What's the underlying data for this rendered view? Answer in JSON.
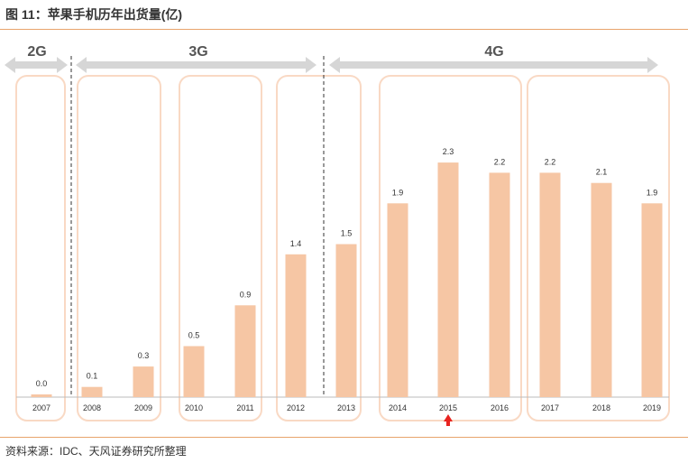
{
  "figure_title": "图 11：苹果手机历年出货量(亿)",
  "source": "资料来源：IDC、天风证券研究所整理",
  "generations": [
    {
      "label": "2G"
    },
    {
      "label": "3G"
    },
    {
      "label": "4G"
    }
  ],
  "colors": {
    "bar": "#f6c6a4",
    "frame": "#f9d9c4",
    "rule": "#e8a46c",
    "arrow": "#d6d6d6",
    "marker": "#e8231f",
    "text": "#333333",
    "axis": "#bbbbbb"
  },
  "chart_data": {
    "type": "bar",
    "title": "苹果手机历年出货量(亿)",
    "xlabel": "",
    "ylabel": "",
    "ylim": [
      0,
      2.5
    ],
    "grid": false,
    "legend": "none",
    "categories": [
      "2007",
      "2008",
      "2009",
      "2010",
      "2011",
      "2012",
      "2013",
      "2014",
      "2015",
      "2016",
      "2017",
      "2018",
      "2019"
    ],
    "values": [
      0.0,
      0.1,
      0.3,
      0.5,
      0.9,
      1.4,
      1.5,
      1.9,
      2.3,
      2.2,
      2.2,
      2.1,
      1.9
    ],
    "value_labels": [
      "0.0",
      "0.1",
      "0.3",
      "0.5",
      "0.9",
      "1.4",
      "1.5",
      "1.9",
      "2.3",
      "2.2",
      "2.2",
      "2.1",
      "1.9"
    ],
    "highlight_category": "2015"
  }
}
